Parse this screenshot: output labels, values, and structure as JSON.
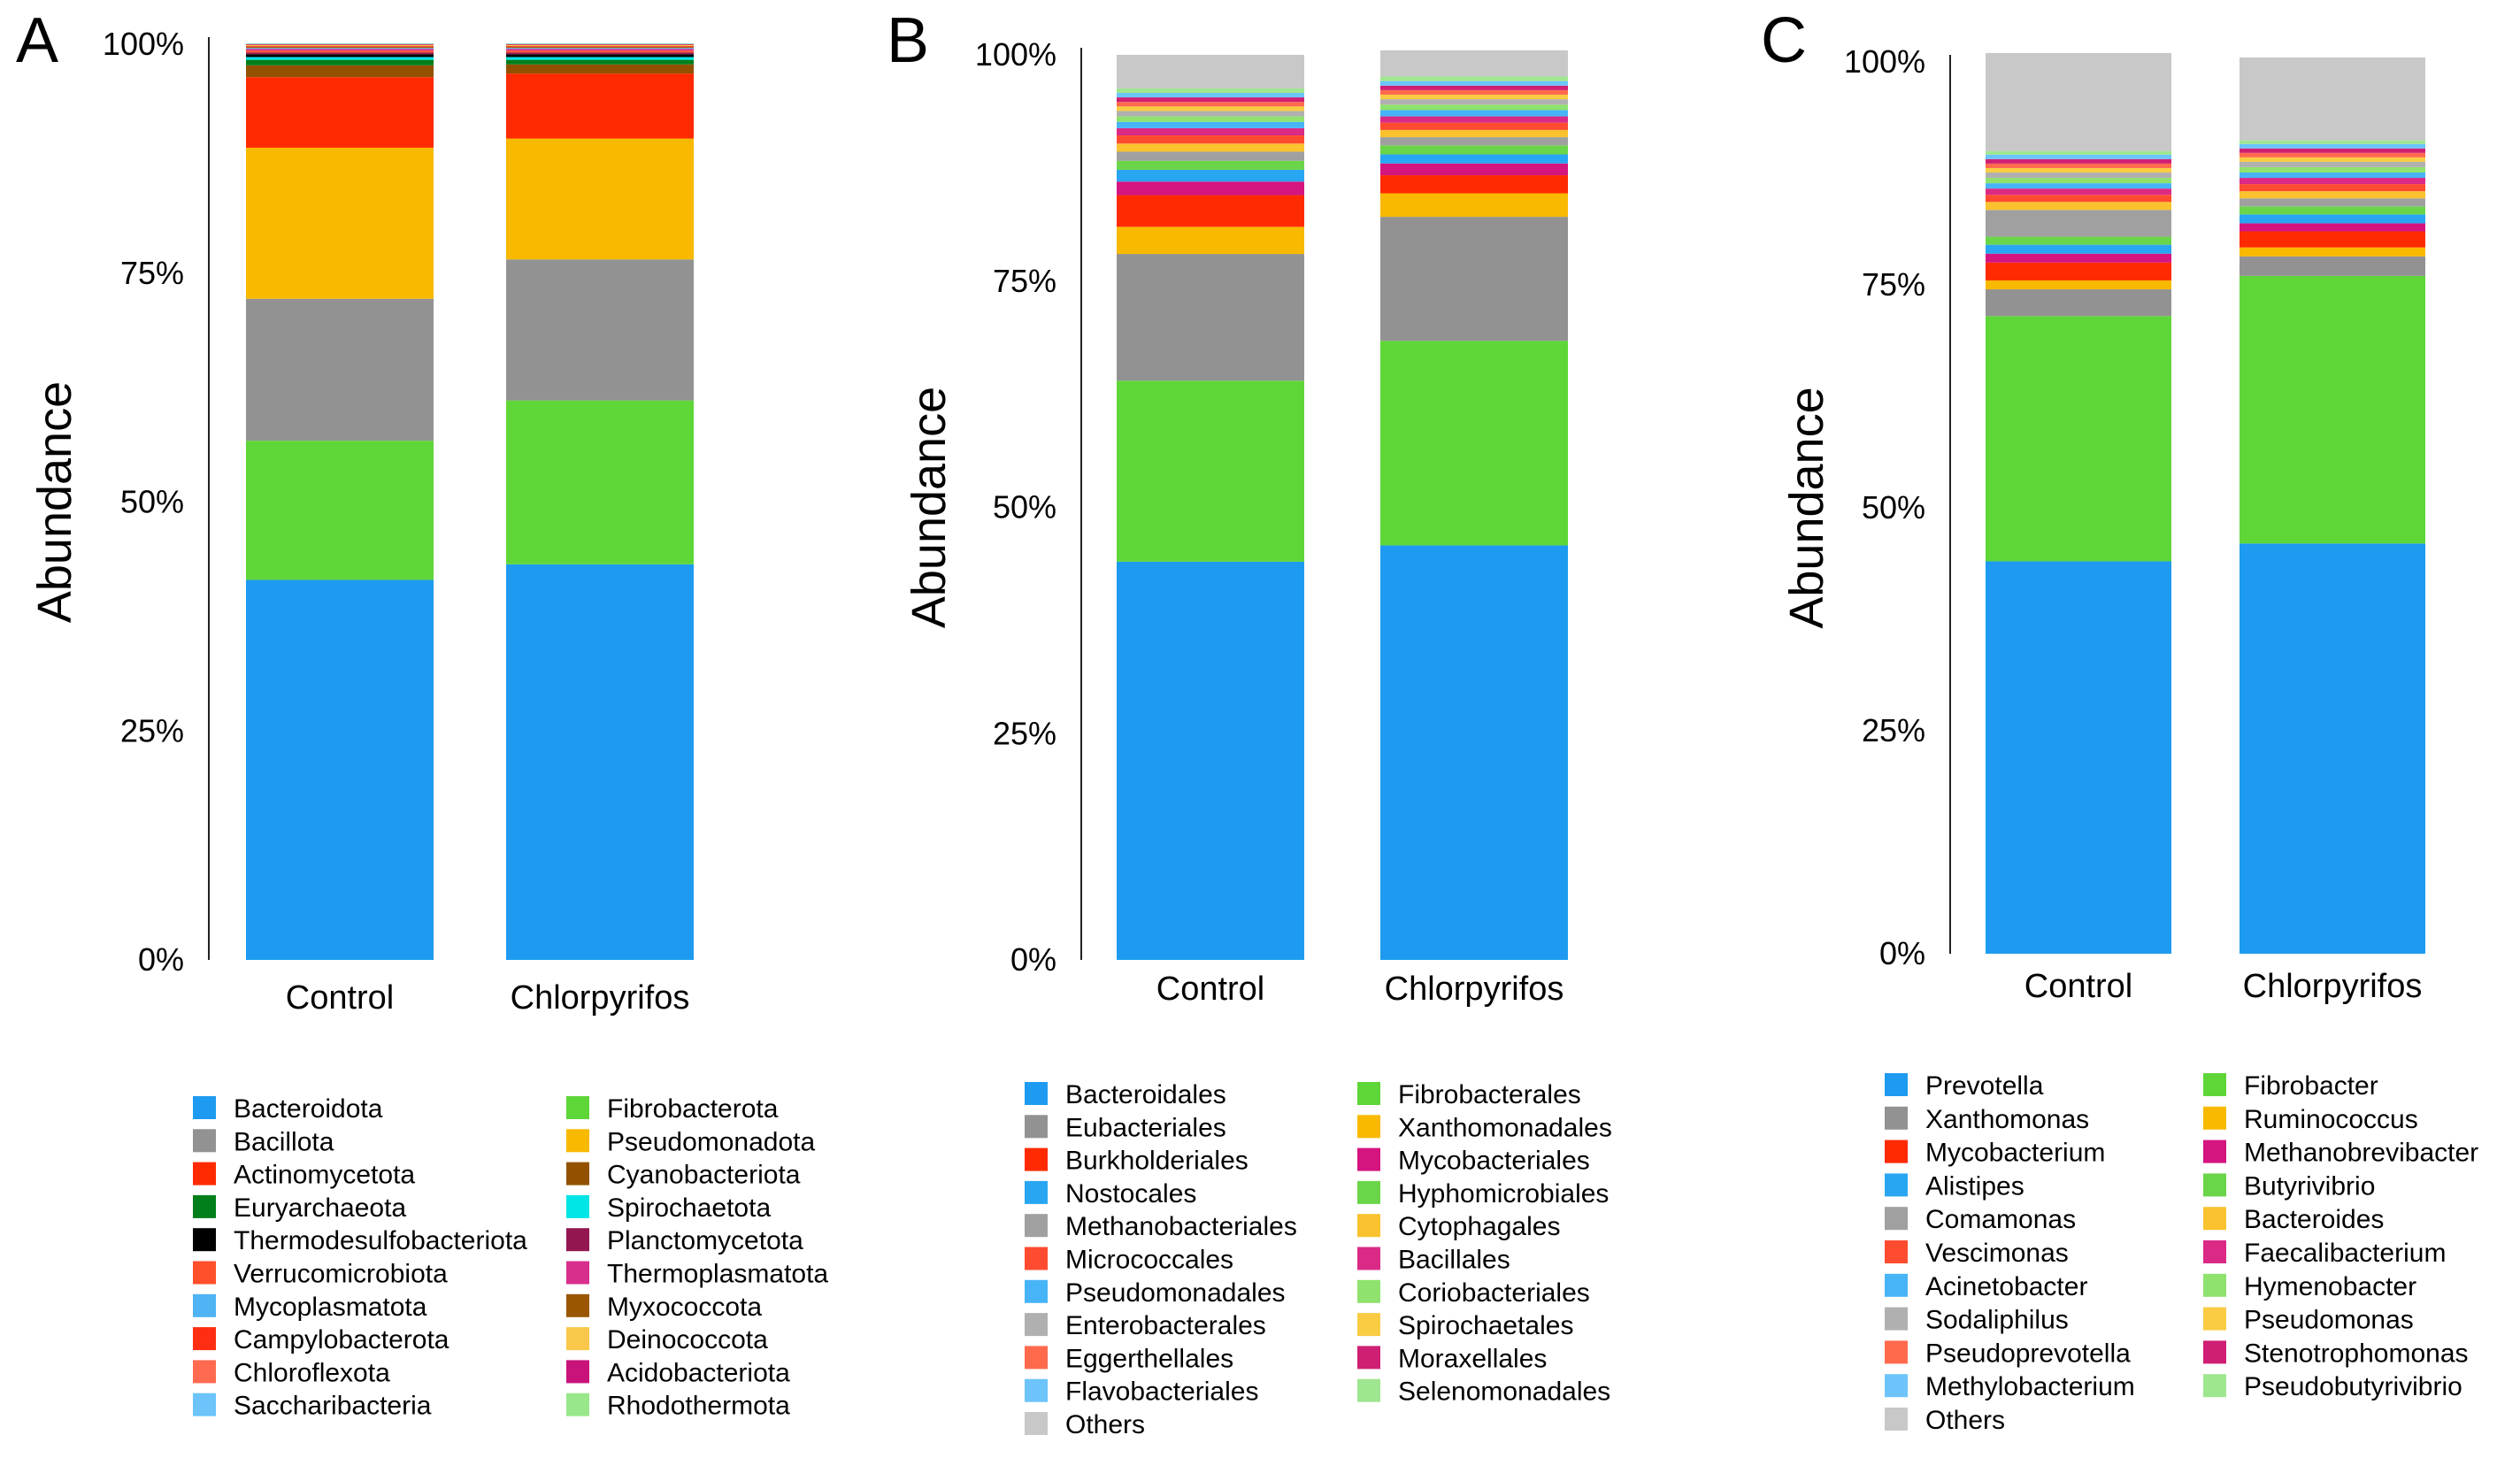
{
  "chart_data": [
    {
      "type": "bar",
      "stacked": true,
      "panel": "A",
      "title": "",
      "xlabel": "",
      "ylabel": "Abundance",
      "ylim": [
        0,
        100
      ],
      "yticks": [
        "0%",
        "25%",
        "50%",
        "75%",
        "100%"
      ],
      "categories": [
        "Control",
        "Chlorpyrifos"
      ],
      "legend_position": "bottom",
      "series": [
        {
          "name": "Bacteroidota",
          "color": "#1e9bf0",
          "values": [
            41.5,
            43.2
          ]
        },
        {
          "name": "Fibrobacterota",
          "color": "#5fd638",
          "values": [
            15.2,
            17.9
          ]
        },
        {
          "name": "Bacillota",
          "color": "#929292",
          "values": [
            15.5,
            15.4
          ]
        },
        {
          "name": "Pseudomonadota",
          "color": "#f8b900",
          "values": [
            16.5,
            13.2
          ]
        },
        {
          "name": "Actinomycetota",
          "color": "#ff2a00",
          "values": [
            7.7,
            7.1
          ]
        },
        {
          "name": "Cyanobacteriota",
          "color": "#935100",
          "values": [
            1.3,
            1.0
          ]
        },
        {
          "name": "Euryarchaeota",
          "color": "#007f1a",
          "values": [
            0.6,
            0.5
          ]
        },
        {
          "name": "Spirochaetota",
          "color": "#00e5e5",
          "values": [
            0.3,
            0.3
          ]
        },
        {
          "name": "Thermodesulfobacteriota",
          "color": "#000000",
          "values": [
            0.3,
            0.3
          ]
        },
        {
          "name": "Planctomycetota",
          "color": "#941651",
          "values": [
            0.2,
            0.2
          ]
        },
        {
          "name": "Verrucomicrobiota",
          "color": "#ff4f2b",
          "values": [
            0.2,
            0.2
          ]
        },
        {
          "name": "Thermoplasmatota",
          "color": "#d82e8c",
          "values": [
            0.2,
            0.2
          ]
        },
        {
          "name": "Mycoplasmatota",
          "color": "#4fb3f4",
          "values": [
            0.1,
            0.1
          ]
        },
        {
          "name": "Myxococcota",
          "color": "#9a5600",
          "values": [
            0.1,
            0.1
          ]
        },
        {
          "name": "Campylobacterota",
          "color": "#ff2d12",
          "values": [
            0.1,
            0.1
          ]
        },
        {
          "name": "Deinococcota",
          "color": "#f9c84a",
          "values": [
            0.1,
            0.1
          ]
        },
        {
          "name": "Chloroflexota",
          "color": "#ff6a50",
          "values": [
            0.05,
            0.05
          ]
        },
        {
          "name": "Acidobacteriota",
          "color": "#c9137a",
          "values": [
            0.05,
            0.05
          ]
        },
        {
          "name": "Saccharibacteria",
          "color": "#6cc4fa",
          "values": [
            0.05,
            0.05
          ]
        },
        {
          "name": "Rhodothermota",
          "color": "#98e88b",
          "values": [
            0.05,
            0.05
          ]
        }
      ]
    },
    {
      "type": "bar",
      "stacked": true,
      "panel": "B",
      "title": "",
      "xlabel": "",
      "ylabel": "Abundance",
      "ylim": [
        0,
        100
      ],
      "yticks": [
        "0%",
        "25%",
        "50%",
        "75%",
        "100%"
      ],
      "categories": [
        "Control",
        "Chlorpyrifos"
      ],
      "legend_position": "bottom",
      "series": [
        {
          "name": "Bacteroidales",
          "color": "#1e9bf0",
          "values": [
            44.0,
            45.8
          ]
        },
        {
          "name": "Fibrobacterales",
          "color": "#5fd638",
          "values": [
            20.0,
            22.6
          ]
        },
        {
          "name": "Eubacteriales",
          "color": "#929292",
          "values": [
            14.0,
            13.7
          ]
        },
        {
          "name": "Xanthomonadales",
          "color": "#f8b900",
          "values": [
            3.0,
            2.6
          ]
        },
        {
          "name": "Burkholderiales",
          "color": "#ff2a00",
          "values": [
            3.5,
            2.0
          ]
        },
        {
          "name": "Mycobacteriales",
          "color": "#d4147f",
          "values": [
            1.5,
            1.3
          ]
        },
        {
          "name": "Nostocales",
          "color": "#29a6f2",
          "values": [
            1.3,
            1.0
          ]
        },
        {
          "name": "Hyphomicrobiales",
          "color": "#6bd54a",
          "values": [
            1.0,
            1.0
          ]
        },
        {
          "name": "Methanobacteriales",
          "color": "#a0a0a0",
          "values": [
            1.0,
            0.9
          ]
        },
        {
          "name": "Cytophagales",
          "color": "#f9c22e",
          "values": [
            0.9,
            0.8
          ]
        },
        {
          "name": "Micrococcales",
          "color": "#ff4b2f",
          "values": [
            0.9,
            0.8
          ]
        },
        {
          "name": "Bacillales",
          "color": "#da2a86",
          "values": [
            0.8,
            0.7
          ]
        },
        {
          "name": "Pseudomonadales",
          "color": "#47b4f7",
          "values": [
            0.7,
            0.7
          ]
        },
        {
          "name": "Coriobacteriales",
          "color": "#8fe26e",
          "values": [
            0.6,
            0.6
          ]
        },
        {
          "name": "Enterobacterales",
          "color": "#b0b0b0",
          "values": [
            0.6,
            0.6
          ]
        },
        {
          "name": "Spirochaetales",
          "color": "#f9cc44",
          "values": [
            0.5,
            0.5
          ]
        },
        {
          "name": "Eggerthellales",
          "color": "#ff6a4d",
          "values": [
            0.5,
            0.5
          ]
        },
        {
          "name": "Moraxellales",
          "color": "#cf1f74",
          "values": [
            0.5,
            0.5
          ]
        },
        {
          "name": "Flavobacteriales",
          "color": "#6cc4fa",
          "values": [
            0.5,
            0.5
          ]
        },
        {
          "name": "Selenomonadales",
          "color": "#9fe690",
          "values": [
            0.5,
            0.5
          ]
        },
        {
          "name": "Others",
          "color": "#c8c8c8",
          "values": [
            3.7,
            2.9
          ]
        }
      ]
    },
    {
      "type": "bar",
      "stacked": true,
      "panel": "C",
      "title": "",
      "xlabel": "",
      "ylabel": "Abundance",
      "ylim": [
        0,
        100
      ],
      "yticks": [
        "0%",
        "25%",
        "50%",
        "75%",
        "100%"
      ],
      "categories": [
        "Control",
        "Chlorpyrifos"
      ],
      "legend_position": "bottom",
      "series": [
        {
          "name": "Prevotella",
          "color": "#1e9bf0",
          "values": [
            44.0,
            46.0
          ]
        },
        {
          "name": "Fibrobacter",
          "color": "#5fd638",
          "values": [
            27.5,
            30.0
          ]
        },
        {
          "name": "Xanthomonas",
          "color": "#929292",
          "values": [
            3.0,
            2.2
          ]
        },
        {
          "name": "Ruminococcus",
          "color": "#f8b900",
          "values": [
            1.0,
            1.0
          ]
        },
        {
          "name": "Mycobacterium",
          "color": "#ff2a00",
          "values": [
            2.0,
            1.8
          ]
        },
        {
          "name": "Methanobrevibacter",
          "color": "#d4147f",
          "values": [
            1.0,
            0.9
          ]
        },
        {
          "name": "Alistipes",
          "color": "#29a6f2",
          "values": [
            1.0,
            1.0
          ]
        },
        {
          "name": "Butyrivibrio",
          "color": "#6bd54a",
          "values": [
            0.9,
            0.9
          ]
        },
        {
          "name": "Comamonas",
          "color": "#a0a0a0",
          "values": [
            3.0,
            0.9
          ]
        },
        {
          "name": "Bacteroides",
          "color": "#f9c22e",
          "values": [
            0.9,
            0.8
          ]
        },
        {
          "name": "Vescimonas",
          "color": "#ff4b2f",
          "values": [
            0.8,
            0.8
          ]
        },
        {
          "name": "Faecalibacterium",
          "color": "#da2a86",
          "values": [
            0.7,
            0.7
          ]
        },
        {
          "name": "Acinetobacter",
          "color": "#47b4f7",
          "values": [
            0.6,
            0.6
          ]
        },
        {
          "name": "Hymenobacter",
          "color": "#8fe26e",
          "values": [
            0.6,
            0.6
          ]
        },
        {
          "name": "Sodaliphilus",
          "color": "#b0b0b0",
          "values": [
            0.6,
            0.6
          ]
        },
        {
          "name": "Pseudomonas",
          "color": "#f9cc44",
          "values": [
            0.5,
            0.5
          ]
        },
        {
          "name": "Pseudoprevotella",
          "color": "#ff6a4d",
          "values": [
            0.5,
            0.5
          ]
        },
        {
          "name": "Stenotrophomonas",
          "color": "#cf1f74",
          "values": [
            0.5,
            0.5
          ]
        },
        {
          "name": "Methylobacterium",
          "color": "#6cc4fa",
          "values": [
            0.5,
            0.5
          ]
        },
        {
          "name": "Pseudobutyrivibrio",
          "color": "#9fe690",
          "values": [
            0.4,
            0.4
          ]
        },
        {
          "name": "Others",
          "color": "#c8c8c8",
          "values": [
            11.0,
            9.3
          ]
        }
      ]
    }
  ]
}
